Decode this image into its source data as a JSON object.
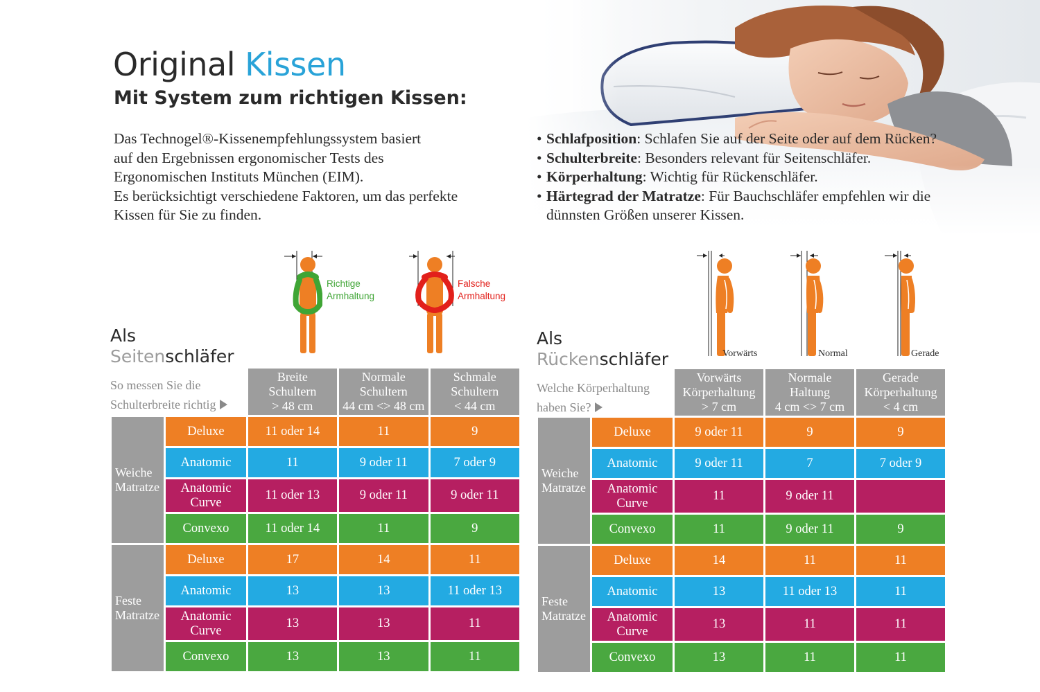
{
  "header": {
    "title_part1": "Original",
    "title_part2": "Kissen",
    "subtitle": "Mit System zum richtigen Kissen:",
    "accent_color": "#29a3d8"
  },
  "intro": {
    "lines": [
      "Das Technogel®-Kissenempfehlungssystem basiert",
      "auf den Ergebnissen ergonomischer Tests des",
      "Ergonomischen Instituts München (EIM).",
      "Es berücksichtigt verschiedene Faktoren, um das perfekte",
      "Kissen für Sie zu finden."
    ]
  },
  "factors": [
    {
      "term": "Schlafposition",
      "text": ": Schlafen Sie auf der Seite oder auf dem Rücken?"
    },
    {
      "term": "Schulterbreite",
      "text": ": Besonders relevant für Seitenschläfer."
    },
    {
      "term": "Körperhaltung",
      "text": ": Wichtig für Rückenschläfer."
    },
    {
      "term": "Härtegrad der Matratze",
      "text": ": Für Bauchschläfer empfehlen wir die dünnsten Größen unserer Kissen."
    }
  ],
  "side_section": {
    "title_als": "Als",
    "title_grey": "Seiten",
    "title_dark": "schläfer",
    "hint_line1": "So messen Sie die",
    "hint_line2": "Schulterbreite richtig",
    "figure_correct": {
      "line1": "Richtige",
      "line2": "Armhaltung",
      "color": "#3fa535"
    },
    "figure_wrong": {
      "line1": "Falsche",
      "line2": "Armhaltung",
      "color": "#e2201b"
    },
    "columns": [
      {
        "line1": "Breite",
        "line2": "Schultern",
        "line3": "> 48 cm"
      },
      {
        "line1": "Normale",
        "line2": "Schultern",
        "line3": "44 cm <> 48 cm"
      },
      {
        "line1": "Schmale",
        "line2": "Schultern",
        "line3": "< 44 cm"
      }
    ],
    "groups": [
      {
        "label_line1": "Weiche",
        "label_line2": "Matratze",
        "rows": [
          {
            "product": "Deluxe",
            "values": [
              "11 oder 14",
              "11",
              "9"
            ]
          },
          {
            "product": "Anatomic",
            "values": [
              "11",
              "9 oder 11",
              "7 oder 9"
            ]
          },
          {
            "product": "Anatomic Curve",
            "values": [
              "11 oder 13",
              "9 oder 11",
              "9 oder 11"
            ]
          },
          {
            "product": "Convexo",
            "values": [
              "11 oder 14",
              "11",
              "9"
            ]
          }
        ]
      },
      {
        "label_line1": "Feste",
        "label_line2": "Matratze",
        "rows": [
          {
            "product": "Deluxe",
            "values": [
              "17",
              "14",
              "11"
            ]
          },
          {
            "product": "Anatomic",
            "values": [
              "13",
              "13",
              "11 oder 13"
            ]
          },
          {
            "product": "Anatomic Curve",
            "values": [
              "13",
              "13",
              "11"
            ]
          },
          {
            "product": "Convexo",
            "values": [
              "13",
              "13",
              "11"
            ]
          }
        ]
      }
    ]
  },
  "back_section": {
    "title_als": "Als",
    "title_grey": "Rücken",
    "title_dark": "schläfer",
    "hint_line1": "Welche Körperhaltung",
    "hint_line2": "haben Sie?",
    "figure_labels": [
      "Vorwärts",
      "Normal",
      "Gerade"
    ],
    "columns": [
      {
        "line1": "Vorwärts",
        "line2": "Körperhaltung",
        "line3": "> 7 cm"
      },
      {
        "line1": "Normale",
        "line2": "Haltung",
        "line3": "4 cm <> 7 cm"
      },
      {
        "line1": "Gerade",
        "line2": "Körperhaltung",
        "line3": "< 4 cm"
      }
    ],
    "groups": [
      {
        "label_line1": "Weiche",
        "label_line2": "Matratze",
        "rows": [
          {
            "product": "Deluxe",
            "values": [
              "9 oder 11",
              "9",
              "9"
            ]
          },
          {
            "product": "Anatomic",
            "values": [
              "9 oder 11",
              "7",
              "7 oder 9"
            ]
          },
          {
            "product": "Anatomic Curve",
            "values": [
              "11",
              "9 oder 11",
              ""
            ]
          },
          {
            "product": "Convexo",
            "values": [
              "11",
              "9 oder 11",
              "9"
            ]
          }
        ]
      },
      {
        "label_line1": "Feste",
        "label_line2": "Matratze",
        "rows": [
          {
            "product": "Deluxe",
            "values": [
              "14",
              "11",
              "11"
            ]
          },
          {
            "product": "Anatomic",
            "values": [
              "13",
              "11 oder 13",
              "11"
            ]
          },
          {
            "product": "Anatomic Curve",
            "values": [
              "13",
              "11",
              "11"
            ]
          },
          {
            "product": "Convexo",
            "values": [
              "13",
              "11",
              "11"
            ]
          }
        ]
      }
    ]
  },
  "product_colors": {
    "Deluxe": "#ee7f24",
    "Anatomic": "#23aae2",
    "Anatomic Curve": "#b61f61",
    "Convexo": "#4aa840"
  },
  "figure_color": "#ee7f24",
  "header_gray": "#9d9d9d"
}
